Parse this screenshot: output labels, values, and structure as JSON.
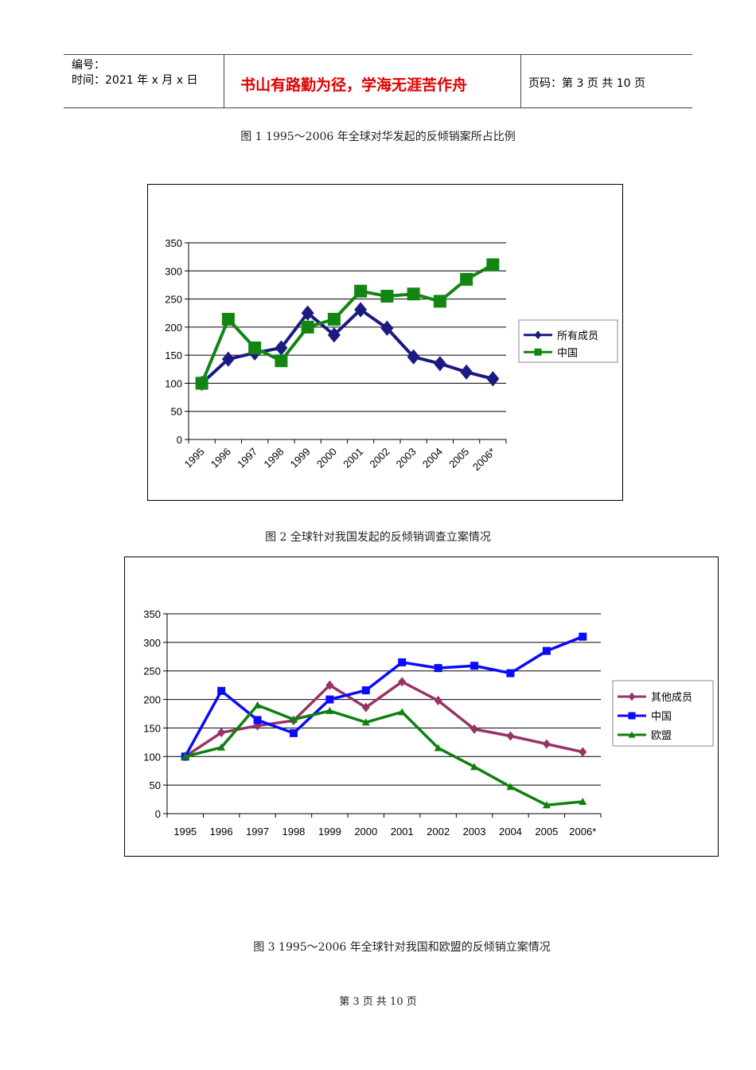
{
  "header": {
    "number": "编号：",
    "time": "时间：2021 年 x 月 x 日",
    "motto": "书山有路勤为径，学海无涯苦作舟",
    "page": "页码：第 3 页 共 10 页"
  },
  "captions": [
    "图 1 1995～2006 年全球对华发起的反倾销案所占比例",
    "图 2 全球针对我国发起的反倾销调查立案情况",
    "图 3 1995～2006 年全球针对我国和欧盟的反倾销立案情况"
  ],
  "footer": "第 3 页 共 10 页",
  "chart_data": [
    {
      "type": "line",
      "categories": [
        "1995",
        "1996",
        "1997",
        "1998",
        "1999",
        "2000",
        "2001",
        "2002",
        "2003",
        "2004",
        "2005",
        "2006*"
      ],
      "ylim": [
        0,
        350
      ],
      "yticks": [
        0,
        50,
        100,
        150,
        200,
        250,
        300,
        350
      ],
      "grid": true,
      "legend": "right",
      "series": [
        {
          "name": "所有成员",
          "color": "#1a1a80",
          "marker": "diamond",
          "values": [
            100,
            143,
            154,
            163,
            225,
            186,
            231,
            198,
            147,
            135,
            120,
            108
          ]
        },
        {
          "name": "中国",
          "color": "#128512",
          "marker": "square",
          "values": [
            100,
            214,
            163,
            140,
            200,
            214,
            264,
            255,
            259,
            246,
            285,
            311
          ]
        }
      ]
    },
    {
      "type": "line",
      "categories": [
        "1995",
        "1996",
        "1997",
        "1998",
        "1999",
        "2000",
        "2001",
        "2002",
        "2003",
        "2004",
        "2005",
        "2006*"
      ],
      "ylim": [
        0,
        350
      ],
      "yticks": [
        0,
        50,
        100,
        150,
        200,
        250,
        300,
        350
      ],
      "grid": true,
      "legend": "right",
      "series": [
        {
          "name": "其他成员",
          "color": "#993366",
          "marker": "diamond",
          "values": [
            100,
            142,
            154,
            163,
            225,
            186,
            231,
            198,
            148,
            136,
            122,
            108
          ]
        },
        {
          "name": "中国",
          "color": "#0a0aff",
          "marker": "square",
          "values": [
            100,
            215,
            164,
            141,
            200,
            216,
            265,
            255,
            259,
            246,
            285,
            310
          ]
        },
        {
          "name": "欧盟",
          "color": "#0f800f",
          "marker": "triangle",
          "values": [
            100,
            116,
            190,
            165,
            180,
            160,
            178,
            115,
            82,
            47,
            15,
            21
          ]
        }
      ]
    }
  ]
}
